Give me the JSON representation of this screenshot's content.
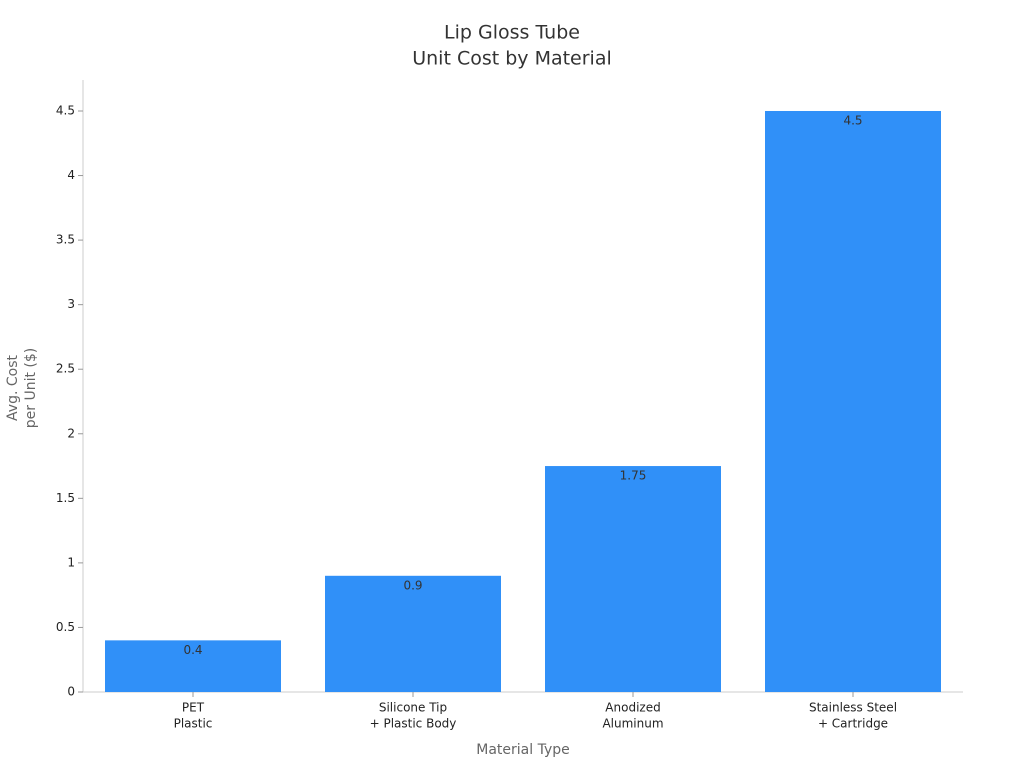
{
  "chart_data": {
    "type": "bar",
    "title": [
      "Lip Gloss Tube",
      "Unit Cost by Material"
    ],
    "x_label": "Material Type",
    "y_label": [
      "Avg. Cost",
      "per Unit ($)"
    ],
    "categories": [
      [
        "PET",
        "Plastic"
      ],
      [
        "Silicone Tip",
        "+ Plastic Body"
      ],
      [
        "Anodized",
        "Aluminum"
      ],
      [
        "Stainless Steel",
        "+ Cartridge"
      ]
    ],
    "values": [
      0.4,
      0.9,
      1.75,
      4.5
    ],
    "color": "#3090f8",
    "ylim": [
      0,
      4.74
    ],
    "yticks": [
      0,
      0.5,
      1,
      1.5,
      2,
      2.5,
      3,
      3.5,
      4,
      4.5
    ],
    "grid": false
  }
}
